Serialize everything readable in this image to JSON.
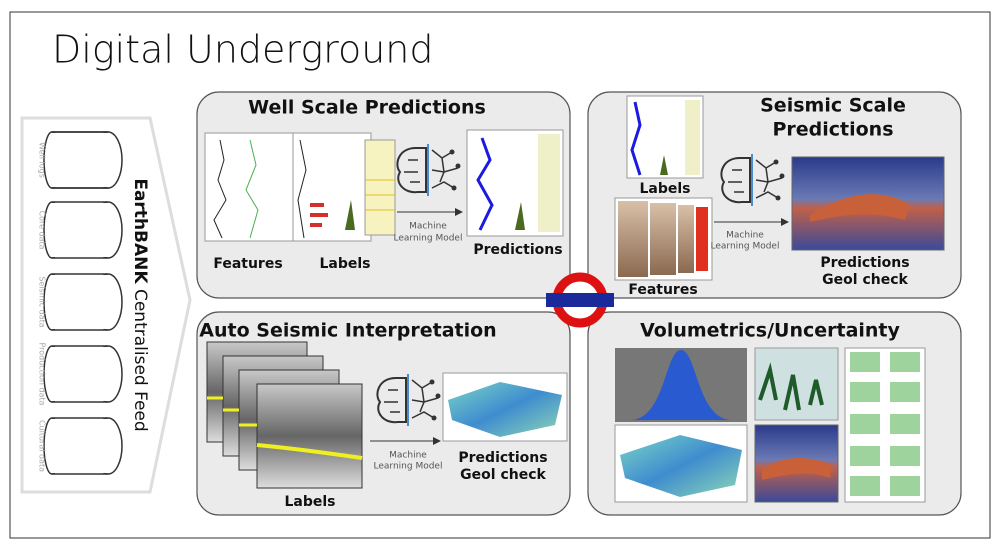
{
  "title": "Digital Underground",
  "sidebar": {
    "name_bold": "EarthBANK",
    "name_rest": "Centralised Feed",
    "stores": [
      "Well logs",
      "Core data",
      "Seismic data",
      "Production data",
      "Cultural data"
    ]
  },
  "panels": [
    {
      "title": [
        "Well Scale Predictions"
      ],
      "inputs": [
        "Features",
        "Labels"
      ],
      "model": [
        "Machine",
        "Learning Model"
      ],
      "outputs": [
        "Predictions"
      ]
    },
    {
      "title": [
        "Seismic Scale",
        "Predictions"
      ],
      "inputs": [
        "Labels",
        "Features"
      ],
      "model": [
        "Machine",
        "Learning Model"
      ],
      "outputs": [
        "Predictions",
        "Geol check"
      ]
    },
    {
      "title": [
        "Auto Seismic Interpretation"
      ],
      "inputs": [
        "Labels"
      ],
      "model": [
        "Machine",
        "Learning Model"
      ],
      "outputs": [
        "Predictions",
        "Geol check"
      ]
    },
    {
      "title": [
        "Volumetrics/Uncertainty"
      ]
    }
  ]
}
